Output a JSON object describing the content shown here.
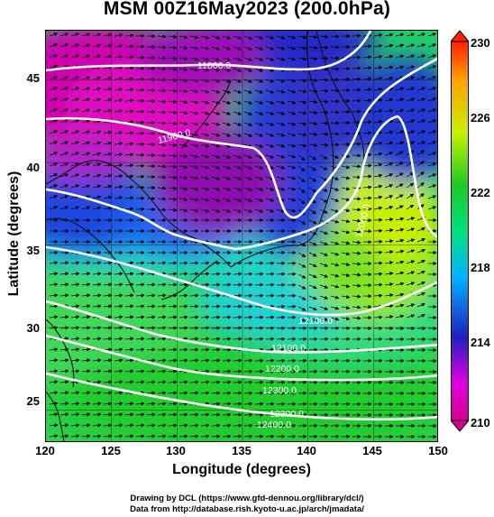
{
  "title": "MSM 00Z16May2023 (200.0hPa)",
  "xlabel": "Longitude (degrees)",
  "ylabel": "Latitude  (degrees)",
  "x_ticks": [
    "120",
    "125",
    "130",
    "135",
    "140",
    "145",
    "150"
  ],
  "y_ticks": [
    "25",
    "30",
    "35",
    "40",
    "45"
  ],
  "colorbar_ticks": [
    "210",
    "214",
    "218",
    "222",
    "226",
    "230"
  ],
  "contour_labels": [
    "11800.0",
    "11900.0",
    "12000.0",
    "12100.0",
    "12100.0",
    "12200.0",
    "12300.0",
    "12300.0",
    "12400.0"
  ],
  "credits": {
    "line1": "Drawing by DCL (https://www.gfd-dennou.org/library/dcl/)",
    "line2": "Data from http://database.rish.kyoto-u.ac.jp/arch/jmadata/"
  },
  "colors": {
    "cbar_stops": [
      "#d4008c",
      "#e000e0",
      "#2020c0",
      "#00b4ff",
      "#00e080",
      "#1ec828",
      "#c8f000",
      "#ffa000",
      "#ff2000"
    ]
  },
  "map_data": {
    "lon_range": [
      120,
      150
    ],
    "lat_range": [
      22.5,
      47.5
    ],
    "grid_spacing_deg": 1.25,
    "color_variable_range": [
      210,
      230
    ],
    "contour_variable": "geopotential height (200.0hPa)",
    "vector_field": "wind arrows"
  }
}
